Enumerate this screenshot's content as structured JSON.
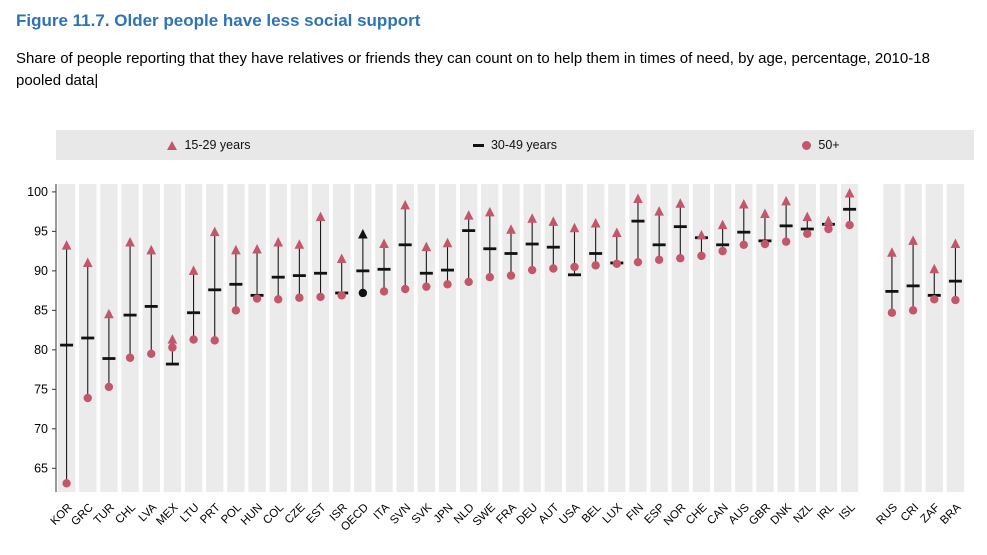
{
  "header": {
    "title": "Figure 11.7. Older people have less social support",
    "subtitle": "Share of people reporting that they have relatives or friends they can count on to help them in times of need, by age, percentage, 2010-18 pooled data",
    "caret": "|"
  },
  "chart_data": {
    "type": "scatter",
    "subtype": "dot-range",
    "title": "Older people have less social support",
    "legend": [
      {
        "label": "15-29 years",
        "marker": "triangle",
        "color": "#c4566b"
      },
      {
        "label": "30-49 years",
        "marker": "dash",
        "color": "#111111"
      },
      {
        "label": "50+",
        "marker": "circle",
        "color": "#c4566b"
      }
    ],
    "colors": {
      "marker_red": "#c4566b",
      "marker_black": "#111111",
      "range_line": "#1a1a1a",
      "band": "#ebebeb",
      "legend_bg": "#e8e8e8",
      "title_blue": "#2e74b5"
    },
    "ylim": [
      62,
      101
    ],
    "yticks": [
      65,
      70,
      75,
      80,
      85,
      90,
      95,
      100
    ],
    "grid": "vertical-bands",
    "legend_position": "top-strip",
    "highlight_category": "OECD",
    "gap_after": "ISL",
    "categories": [
      "KOR",
      "GRC",
      "TUR",
      "CHL",
      "LVA",
      "MEX",
      "LTU",
      "PRT",
      "POL",
      "HUN",
      "COL",
      "CZE",
      "EST",
      "ISR",
      "OECD",
      "ITA",
      "SVN",
      "SVK",
      "JPN",
      "NLD",
      "SWE",
      "FRA",
      "DEU",
      "AUT",
      "USA",
      "BEL",
      "LUX",
      "FIN",
      "ESP",
      "NOR",
      "CHE",
      "CAN",
      "AUS",
      "GBR",
      "DNK",
      "NZL",
      "IRL",
      "ISL",
      "RUS",
      "CRI",
      "ZAF",
      "BRA"
    ],
    "series": [
      {
        "name": "15-29 years",
        "values": [
          93.2,
          91.0,
          84.5,
          93.6,
          92.6,
          81.3,
          90.0,
          94.9,
          92.6,
          92.7,
          93.6,
          93.3,
          96.8,
          91.5,
          94.6,
          93.4,
          98.3,
          93.0,
          93.5,
          97.0,
          97.4,
          95.2,
          96.6,
          96.2,
          95.4,
          96.0,
          94.8,
          99.1,
          97.5,
          98.5,
          94.5,
          95.8,
          98.4,
          97.2,
          98.8,
          96.8,
          96.3,
          99.8,
          92.3,
          93.8,
          90.2,
          93.4
        ]
      },
      {
        "name": "30-49 years",
        "values": [
          80.6,
          81.5,
          78.9,
          84.4,
          85.5,
          78.2,
          84.7,
          87.6,
          88.3,
          86.9,
          89.2,
          89.4,
          89.7,
          87.2,
          90.0,
          90.2,
          93.3,
          89.7,
          90.1,
          95.1,
          92.8,
          92.2,
          93.4,
          93.0,
          89.5,
          92.2,
          91.0,
          96.3,
          93.3,
          95.6,
          94.2,
          93.3,
          94.9,
          93.8,
          95.7,
          95.3,
          95.9,
          97.8,
          87.4,
          88.1,
          86.9,
          88.7
        ]
      },
      {
        "name": "50+",
        "values": [
          63.1,
          73.9,
          75.3,
          79.0,
          79.5,
          80.3,
          81.3,
          81.2,
          85.0,
          86.5,
          86.4,
          86.6,
          86.7,
          86.9,
          87.2,
          87.4,
          87.7,
          88.0,
          88.3,
          88.6,
          89.2,
          89.4,
          90.1,
          90.3,
          90.5,
          90.7,
          90.9,
          91.1,
          91.4,
          91.6,
          91.9,
          92.5,
          93.3,
          93.4,
          93.7,
          94.7,
          95.3,
          95.8,
          84.7,
          85.0,
          86.4,
          86.3
        ]
      }
    ]
  }
}
